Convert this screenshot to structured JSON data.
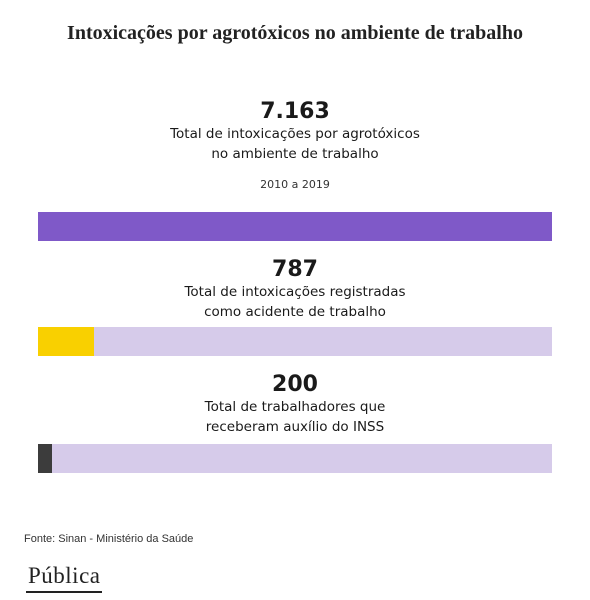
{
  "title": "Intoxicações por agrotóxicos no ambiente de trabalho",
  "source": "Fonte: Sinan - Ministério da Saúde",
  "logo": "Pública",
  "colors": {
    "total": "#7f59c8",
    "track": "#d6cbea",
    "accident": "#f9d000",
    "inss": "#3c3c3c"
  },
  "chart_data": {
    "type": "bar",
    "title": "Intoxicações por agrotóxicos no ambiente de trabalho",
    "period": "2010 a 2019",
    "max": 7163,
    "items": [
      {
        "value": 7163,
        "value_label": "7.163",
        "line1": "Total de intoxicações por agrotóxicos",
        "line2": "no ambiente de trabalho",
        "color": "#7f59c8"
      },
      {
        "value": 787,
        "value_label": "787",
        "line1": "Total de intoxicações registradas",
        "line2": "como acidente de trabalho",
        "color": "#f9d000"
      },
      {
        "value": 200,
        "value_label": "200",
        "line1": "Total de trabalhadores que",
        "line2": "receberam auxílio do INSS",
        "color": "#3c3c3c"
      }
    ]
  }
}
